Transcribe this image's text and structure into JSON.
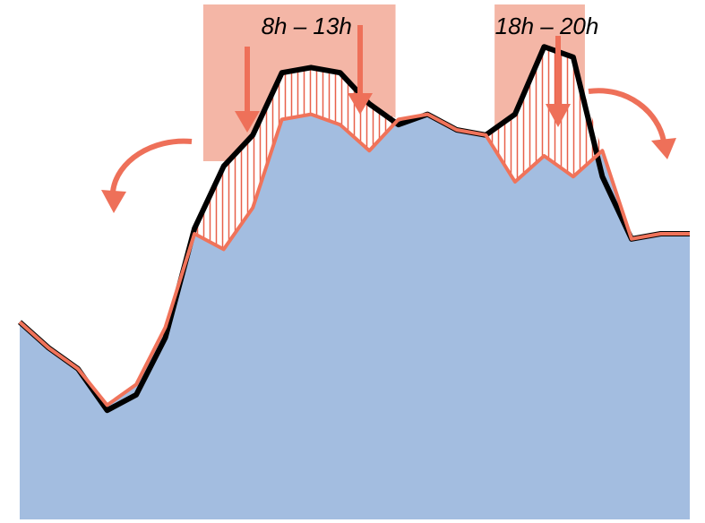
{
  "chart_data": {
    "type": "area",
    "title": "",
    "xlabel": "",
    "ylabel": "",
    "x": [
      0,
      1,
      2,
      3,
      4,
      5,
      6,
      7,
      8,
      9,
      10,
      11,
      12,
      13,
      14,
      15,
      16,
      17,
      18,
      19,
      20,
      21,
      22,
      23
    ],
    "xlim": [
      0,
      23
    ],
    "ylim": [
      0,
      100
    ],
    "grid": false,
    "legend": "none",
    "series": [
      {
        "name": "",
        "role": "original-load",
        "color": "#000000",
        "values": [
          38,
          33,
          29,
          21,
          24,
          35,
          56,
          68,
          74,
          86,
          87,
          86,
          80,
          76,
          78,
          75,
          74,
          78,
          91,
          89,
          66,
          54,
          55,
          55
        ]
      },
      {
        "name": "",
        "role": "shifted-load",
        "color": "#F0735A",
        "values": [
          38,
          33,
          29,
          22,
          26,
          37,
          55,
          52,
          60,
          77,
          78,
          76,
          71,
          77,
          78,
          75,
          74,
          65,
          70,
          66,
          71,
          54,
          55,
          55
        ]
      }
    ],
    "shaded_periods": [
      {
        "label": "8h – 13h",
        "from": 6.3,
        "to": 12.9
      },
      {
        "label": "18h – 20h",
        "from": 16.3,
        "to": 19.4
      }
    ],
    "colors": {
      "area_fill": "#A3BDE0",
      "band_fill": "#F4B6A6",
      "hatch": "#E8604A",
      "arrow": "#EE7059",
      "original_line": "#000000",
      "shifted_line": "#F0735A"
    }
  }
}
